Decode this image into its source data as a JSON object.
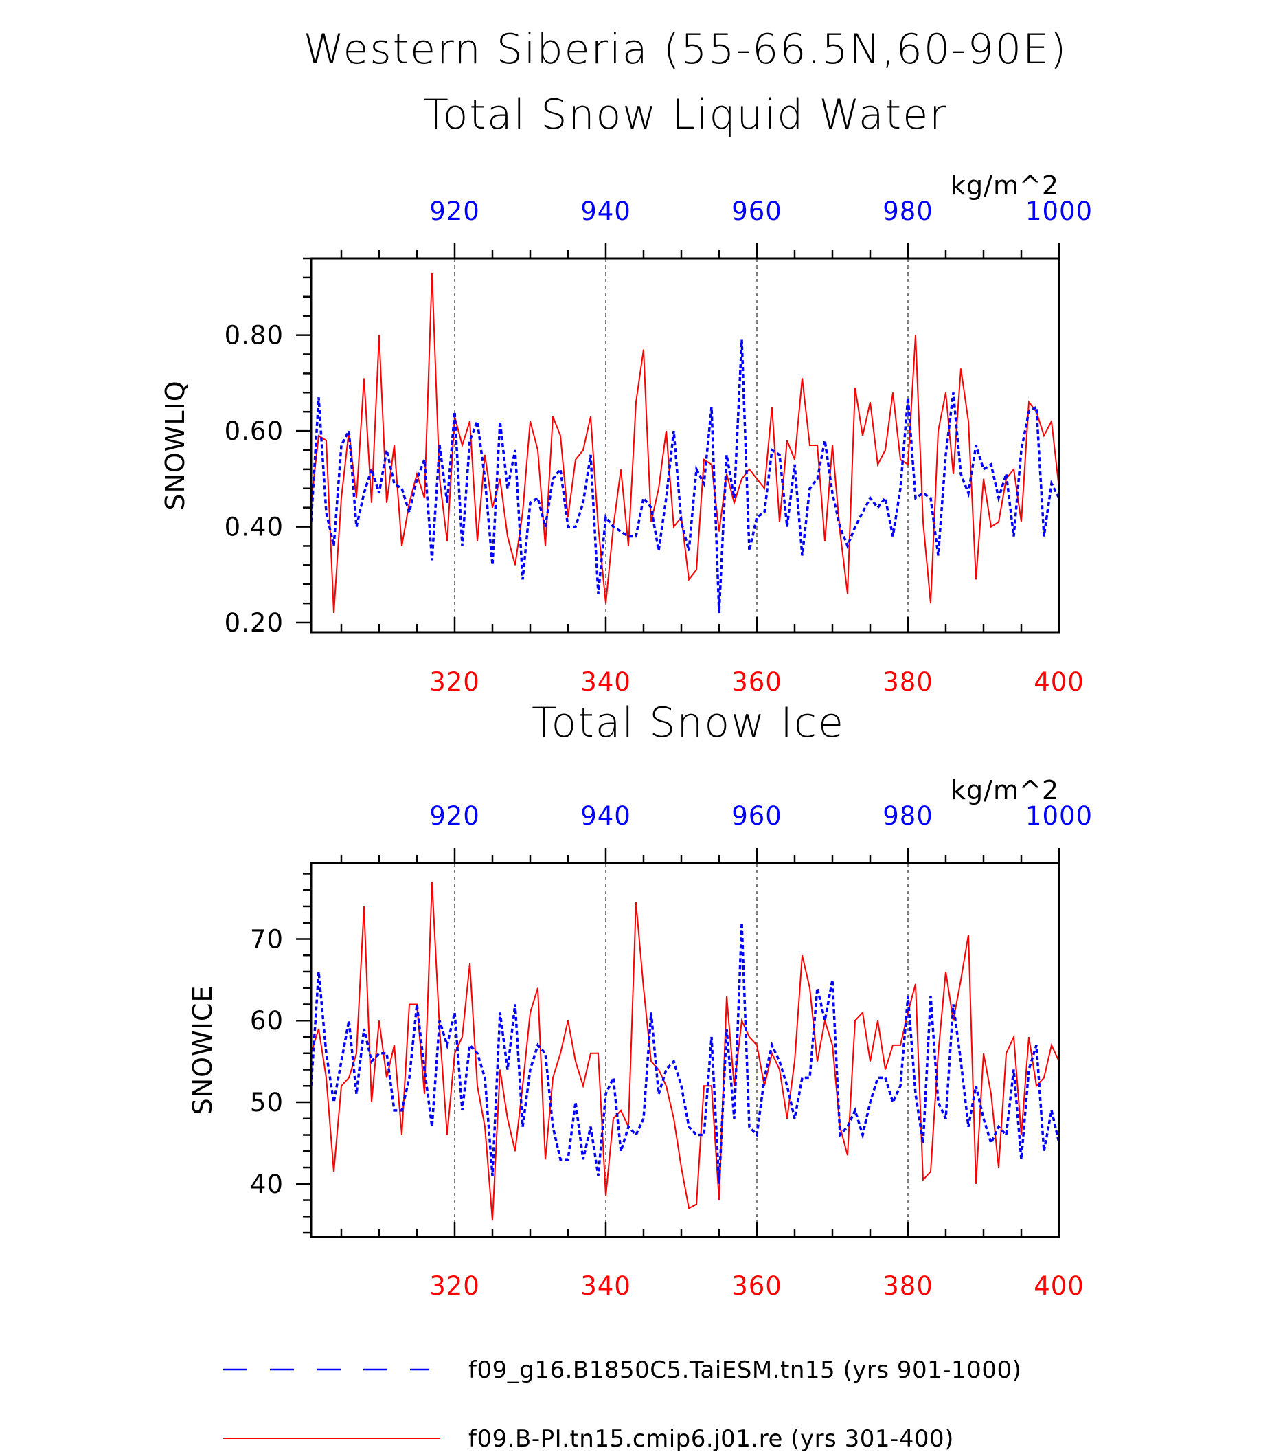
{
  "figure": {
    "title_line1": "Western Siberia (55-66.5N,60-90E)",
    "top_axis_unit": "kg/m^2"
  },
  "legend": {
    "items": [
      {
        "label": "f09_g16.B1850C5.TaiESM.tn15 (yrs 901-1000)",
        "color": "#0000ff",
        "style": "dashed"
      },
      {
        "label": "f09.B-PI.tn15.cmip6.j01.re (yrs 301-400)",
        "color": "#ff0000",
        "style": "solid"
      }
    ]
  },
  "chart_data": [
    {
      "type": "line",
      "title": "Total Snow Liquid Water",
      "ylabel": "SNOWLIQ",
      "top_axis_label": "kg/m^2",
      "ylim": [
        0.18,
        0.96
      ],
      "yticks": [
        0.2,
        0.4,
        0.6,
        0.8
      ],
      "ytick_labels": [
        "0.20",
        "0.40",
        "0.60",
        "0.80"
      ],
      "x_bottom": {
        "range": [
          301,
          400
        ],
        "ticks": [
          320,
          340,
          360,
          380,
          400
        ],
        "color": "#ff0000"
      },
      "x_top": {
        "range": [
          901,
          1000
        ],
        "ticks": [
          920,
          940,
          960,
          980,
          1000
        ],
        "color": "#0000ff"
      },
      "grid": "vertical dashed at major ticks",
      "series": [
        {
          "name": "f09_g16.B1850C5.TaiESM.tn15 (yrs 901-1000)",
          "axis": "top",
          "color": "#0000ff",
          "style": "dashed",
          "x_start": 901,
          "values": [
            0.41,
            0.67,
            0.43,
            0.36,
            0.57,
            0.6,
            0.4,
            0.47,
            0.52,
            0.47,
            0.56,
            0.49,
            0.48,
            0.43,
            0.5,
            0.54,
            0.33,
            0.57,
            0.45,
            0.64,
            0.36,
            0.58,
            0.62,
            0.5,
            0.32,
            0.62,
            0.48,
            0.56,
            0.29,
            0.45,
            0.46,
            0.4,
            0.5,
            0.52,
            0.4,
            0.4,
            0.45,
            0.55,
            0.26,
            0.42,
            0.4,
            0.39,
            0.38,
            0.38,
            0.46,
            0.44,
            0.35,
            0.46,
            0.6,
            0.41,
            0.35,
            0.52,
            0.49,
            0.65,
            0.22,
            0.55,
            0.46,
            0.79,
            0.35,
            0.42,
            0.43,
            0.56,
            0.55,
            0.4,
            0.53,
            0.34,
            0.48,
            0.5,
            0.58,
            0.47,
            0.4,
            0.36,
            0.4,
            0.43,
            0.46,
            0.44,
            0.46,
            0.38,
            0.48,
            0.67,
            0.46,
            0.47,
            0.46,
            0.34,
            0.55,
            0.68,
            0.51,
            0.47,
            0.57,
            0.52,
            0.53,
            0.46,
            0.51,
            0.38,
            0.56,
            0.64,
            0.65,
            0.38,
            0.49,
            0.46
          ]
        },
        {
          "name": "f09.B-PI.tn15.cmip6.j01.re (yrs 301-400)",
          "axis": "bottom",
          "color": "#ff0000",
          "style": "solid",
          "x_start": 301,
          "values": [
            0.45,
            0.59,
            0.58,
            0.22,
            0.46,
            0.6,
            0.46,
            0.71,
            0.45,
            0.8,
            0.45,
            0.57,
            0.36,
            0.45,
            0.51,
            0.46,
            0.93,
            0.5,
            0.37,
            0.63,
            0.57,
            0.62,
            0.37,
            0.55,
            0.44,
            0.5,
            0.38,
            0.32,
            0.43,
            0.62,
            0.56,
            0.36,
            0.63,
            0.59,
            0.42,
            0.54,
            0.56,
            0.63,
            0.4,
            0.24,
            0.4,
            0.52,
            0.36,
            0.66,
            0.77,
            0.41,
            0.48,
            0.6,
            0.4,
            0.42,
            0.29,
            0.31,
            0.54,
            0.53,
            0.39,
            0.51,
            0.45,
            0.5,
            0.52,
            0.5,
            0.48,
            0.65,
            0.41,
            0.58,
            0.54,
            0.71,
            0.57,
            0.57,
            0.37,
            0.57,
            0.39,
            0.26,
            0.69,
            0.59,
            0.66,
            0.53,
            0.56,
            0.68,
            0.54,
            0.53,
            0.8,
            0.41,
            0.24,
            0.6,
            0.68,
            0.51,
            0.73,
            0.62,
            0.29,
            0.5,
            0.4,
            0.41,
            0.5,
            0.52,
            0.41,
            0.66,
            0.64,
            0.59,
            0.62,
            0.48
          ]
        }
      ]
    },
    {
      "type": "line",
      "title": "Total Snow Ice",
      "ylabel": "SNOWICE",
      "top_axis_label": "kg/m^2",
      "ylim": [
        33.5,
        79.3
      ],
      "yticks": [
        40,
        50,
        60,
        70
      ],
      "ytick_labels": [
        "40",
        "50",
        "60",
        "70"
      ],
      "x_bottom": {
        "range": [
          301,
          400
        ],
        "ticks": [
          320,
          340,
          360,
          380,
          400
        ],
        "color": "#ff0000"
      },
      "x_top": {
        "range": [
          901,
          1000
        ],
        "ticks": [
          920,
          940,
          960,
          980,
          1000
        ],
        "color": "#0000ff"
      },
      "grid": "vertical dashed at major ticks",
      "series": [
        {
          "name": "f09_g16.B1850C5.TaiESM.tn15 (yrs 901-1000)",
          "axis": "top",
          "color": "#0000ff",
          "style": "dashed",
          "x_start": 901,
          "values": [
            52,
            66,
            56,
            50,
            55,
            60,
            51,
            59,
            55,
            56,
            56,
            49,
            49,
            53,
            62,
            54,
            47,
            60,
            57,
            61,
            49,
            57,
            56,
            53,
            41,
            61,
            54,
            62,
            47,
            54,
            57,
            56,
            47,
            43,
            43,
            50,
            43,
            47,
            41,
            51,
            53,
            44,
            47,
            46,
            48,
            61,
            51,
            54,
            55,
            52,
            47,
            46,
            46,
            58,
            40,
            59,
            48,
            72,
            47,
            46,
            53,
            57,
            55,
            52,
            48,
            53,
            53,
            64,
            60,
            65,
            46,
            47,
            49,
            46,
            50,
            53,
            53,
            50,
            52,
            63,
            51,
            45,
            63,
            50,
            48,
            62,
            55,
            47,
            52,
            48,
            45,
            47,
            46,
            54,
            43,
            54,
            57,
            44,
            49,
            45
          ]
        },
        {
          "name": "f09.B-PI.tn15.cmip6.j01.re (yrs 301-400)",
          "axis": "bottom",
          "color": "#ff0000",
          "style": "solid",
          "x_start": 301,
          "values": [
            56,
            59,
            53,
            41.5,
            52,
            53,
            56,
            74,
            50,
            60,
            53,
            57,
            46,
            62,
            62,
            51,
            77,
            59,
            46,
            56,
            58,
            67,
            52,
            47,
            35.5,
            54,
            48,
            44,
            52,
            61,
            64,
            43,
            53,
            56,
            60,
            55,
            52,
            56,
            56,
            38.5,
            48,
            49,
            47,
            74.5,
            64,
            55,
            54,
            52,
            48,
            42,
            37,
            37.5,
            52,
            52,
            38,
            63,
            52,
            60,
            58,
            57,
            52,
            56,
            54,
            48,
            55,
            68,
            64,
            55,
            60,
            57,
            47,
            43.5,
            60,
            61,
            55,
            60,
            54,
            57,
            57,
            61,
            64.5,
            40.5,
            41.5,
            56,
            66,
            60,
            65,
            70.5,
            40,
            56,
            51,
            42,
            56,
            58,
            46,
            58,
            52,
            53,
            57,
            55
          ]
        }
      ]
    }
  ]
}
